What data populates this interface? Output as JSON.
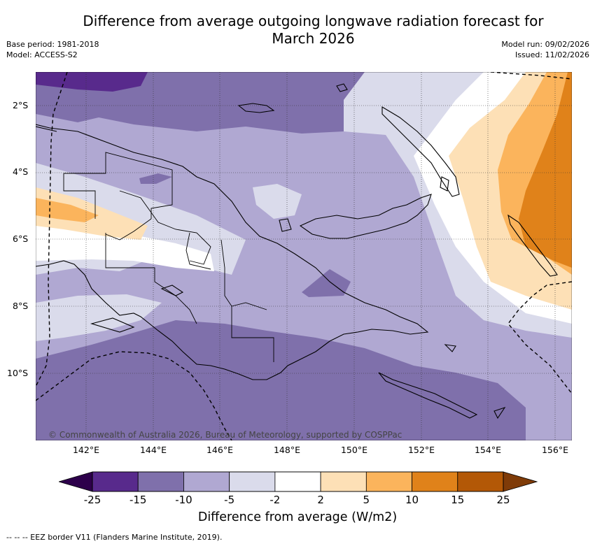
{
  "title_line1": "Difference from average outgoing longwave radiation forecast for",
  "title_line2": "March 2026",
  "base_period": "Base period: 1981-2018",
  "model": "Model: ACCESS-S2",
  "model_run": "Model run: 09/02/2026",
  "issued": "Issued: 11/02/2026",
  "lat_labels": [
    "2°S",
    "4°S",
    "6°S",
    "8°S",
    "10°S"
  ],
  "lon_labels": [
    "142°E",
    "144°E",
    "146°E",
    "148°E",
    "150°E",
    "152°E",
    "154°E",
    "156°E"
  ],
  "copyright": "© Commonwealth of Australia 2026, Bureau of Meteorology, supported by COSPPac",
  "colorbar": {
    "labels": [
      "-25",
      "-15",
      "-10",
      "-5",
      "-2",
      "2",
      "5",
      "10",
      "15",
      "25"
    ],
    "colors": [
      "#582a8c",
      "#7f70ab",
      "#b0a8d2",
      "#dadbeb",
      "#ffffff",
      "#fde0b6",
      "#fbb45c",
      "#e0821a",
      "#b35806"
    ],
    "under_color": "#2d004b",
    "over_color": "#7f3b08",
    "title": "Difference from average (W/m2)"
  },
  "footer": "-- -- -- EEZ border V11 (Flanders Marine Institute, 2019)."
}
